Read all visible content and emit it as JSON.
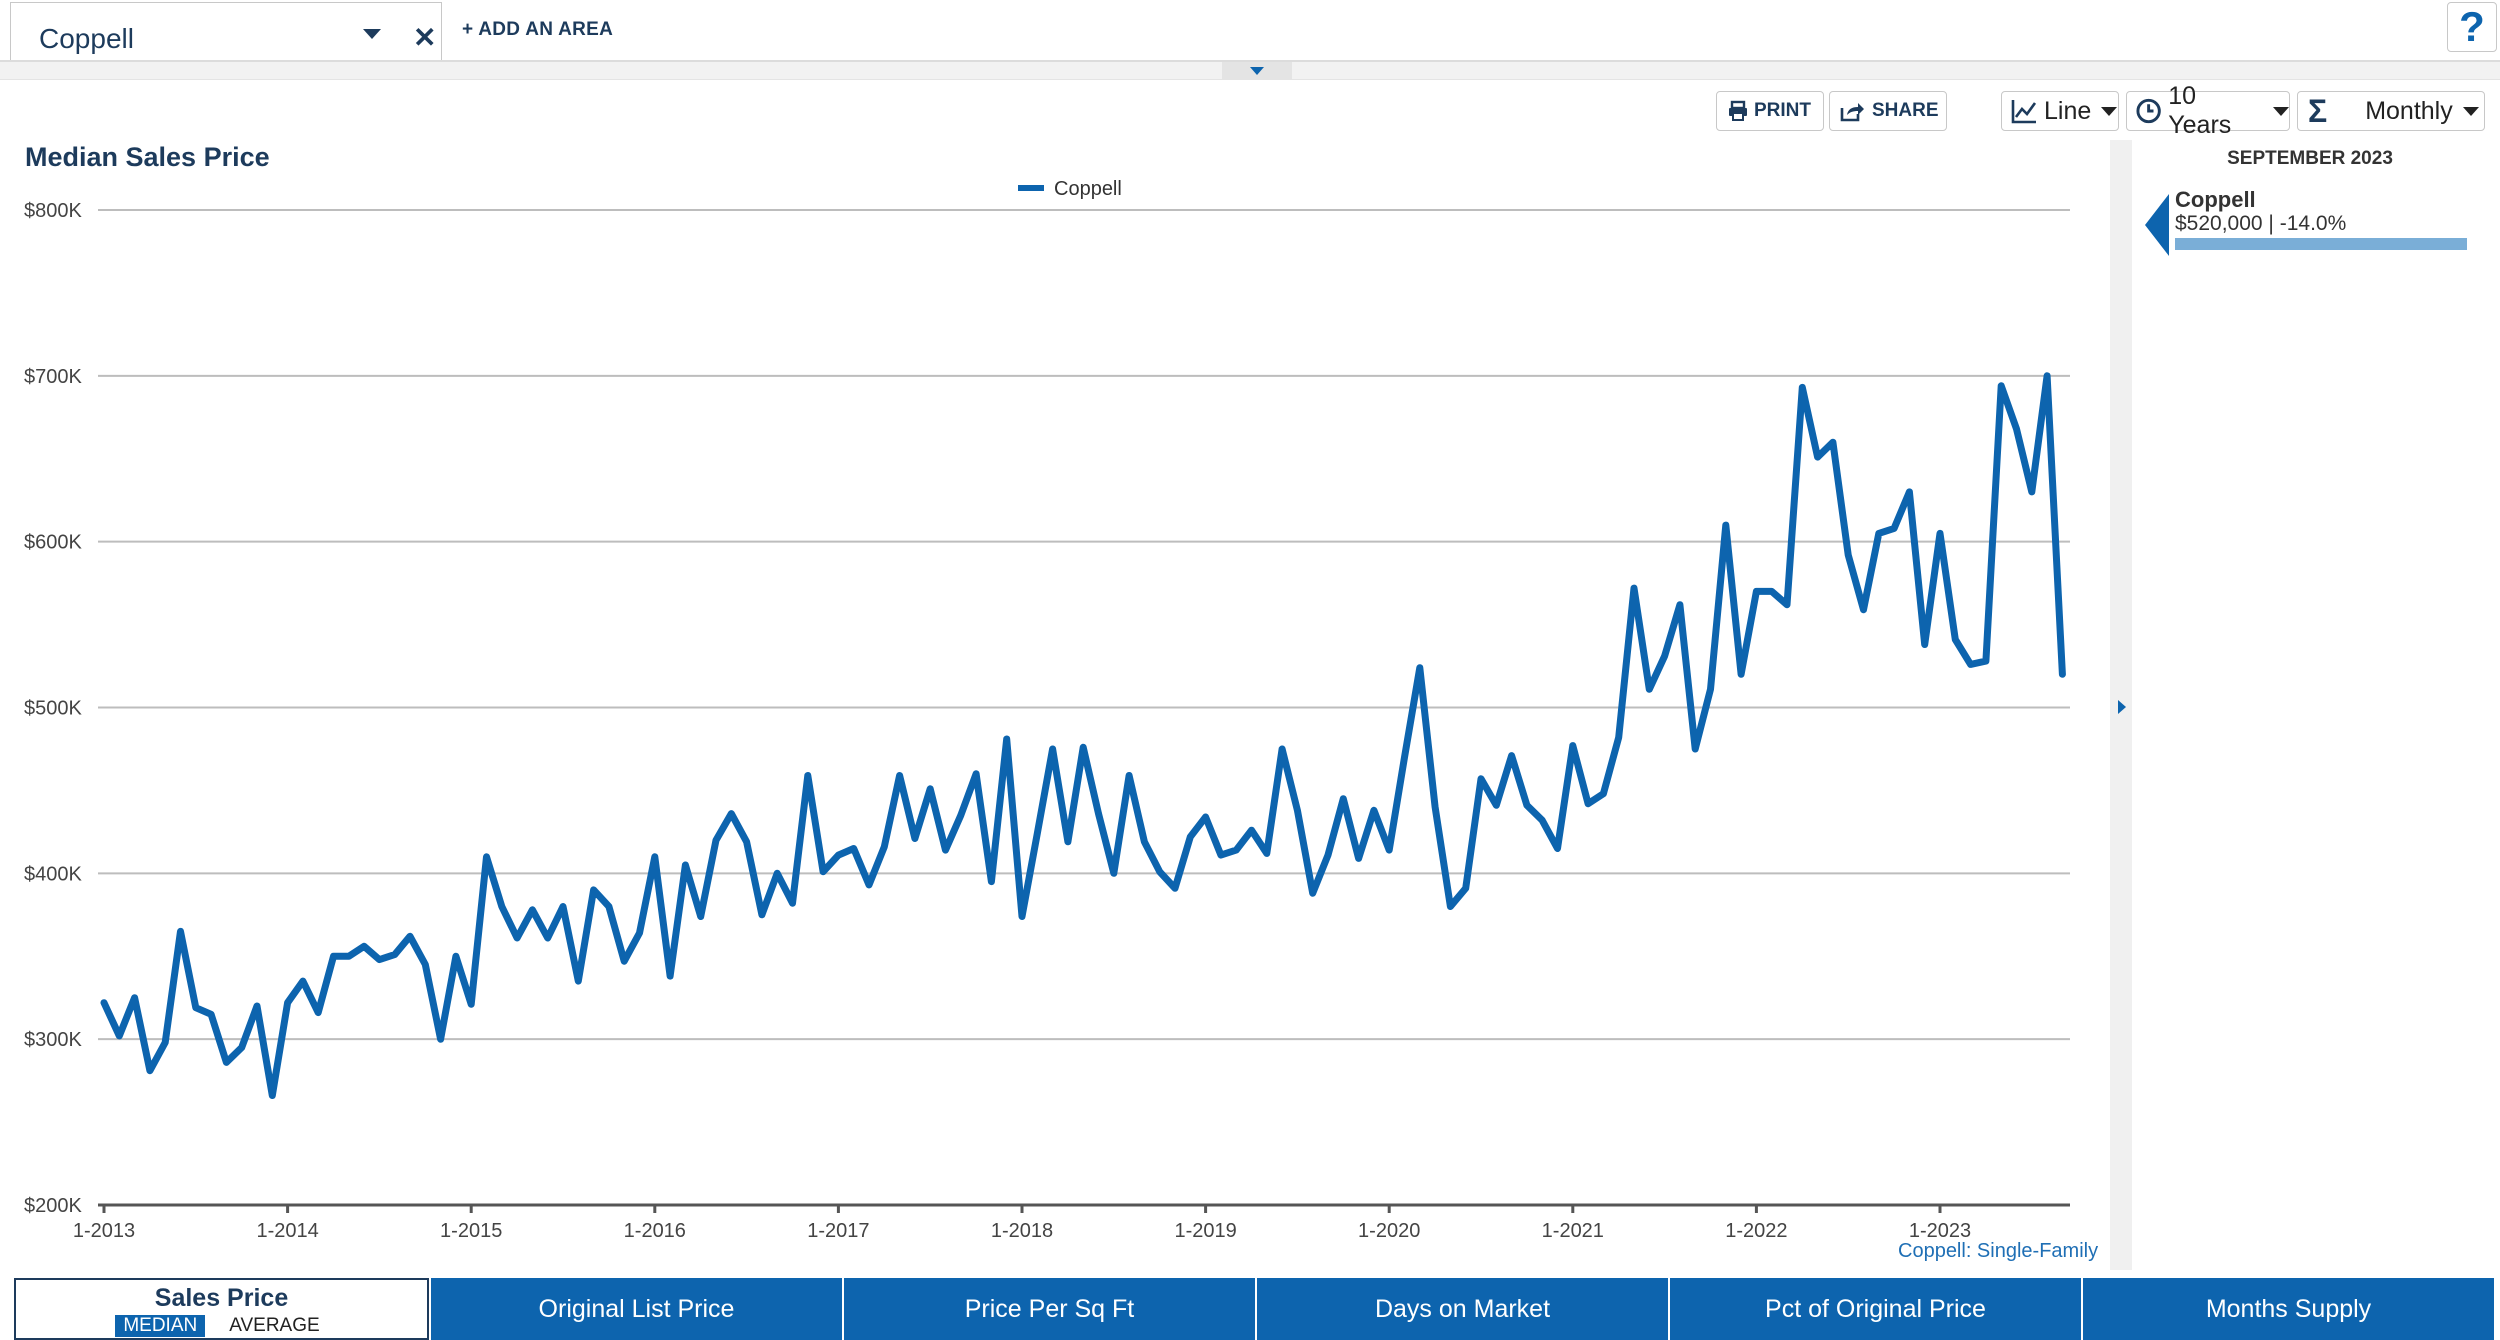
{
  "area": {
    "name": "Coppell",
    "add_label": "+ ADD AN AREA"
  },
  "help_label": "?",
  "toolbar": {
    "print_label": "PRINT",
    "share_label": "SHARE",
    "chart_type": "Line",
    "range": "10 Years",
    "interval": "Monthly"
  },
  "chart_data": {
    "type": "line",
    "title": "Median Sales Price",
    "legend": "top-center",
    "series": [
      {
        "name": "Coppell",
        "color": "#0d64ae",
        "values": [
          322,
          302,
          325,
          281,
          298,
          365,
          319,
          315,
          286,
          295,
          320,
          266,
          322,
          335,
          316,
          350,
          350,
          356,
          348,
          351,
          362,
          345,
          300,
          350,
          321,
          410,
          380,
          361,
          378,
          361,
          380,
          335,
          390,
          380,
          347,
          364,
          410,
          338,
          405,
          374,
          420,
          436,
          419,
          375,
          400,
          382,
          459,
          401,
          411,
          415,
          393,
          416,
          459,
          421,
          451,
          414,
          435,
          460,
          395,
          481,
          374,
          424,
          475,
          419,
          476,
          436,
          400,
          459,
          419,
          401,
          391,
          422,
          434,
          411,
          414,
          426,
          412,
          475,
          438,
          388,
          411,
          445,
          409,
          438,
          414,
          470,
          524,
          440,
          380,
          391,
          457,
          441,
          471,
          441,
          432,
          415,
          477,
          442,
          448,
          482,
          572,
          511,
          531,
          562,
          475,
          511,
          610,
          520,
          570,
          570,
          562,
          693,
          651,
          660,
          592,
          559,
          605,
          608,
          630,
          538,
          605,
          541,
          526,
          528,
          694,
          668,
          630,
          700,
          520
        ]
      }
    ],
    "x_start": "2013-01",
    "x_end": "2023-09",
    "x_ticks": [
      "1-2013",
      "1-2014",
      "1-2015",
      "1-2016",
      "1-2017",
      "1-2018",
      "1-2019",
      "1-2020",
      "1-2021",
      "1-2022",
      "1-2023"
    ],
    "y_ticks": [
      "$200K",
      "$300K",
      "$400K",
      "$500K",
      "$600K",
      "$700K",
      "$800K"
    ],
    "ylim": [
      200,
      800
    ],
    "y_unit": "thousands of dollars",
    "grid": true
  },
  "source_label": "Coppell: Single-Family",
  "right_panel": {
    "date": "SEPTEMBER 2023",
    "area": "Coppell",
    "value": "$520,000 | -14.0%"
  },
  "tabs": [
    {
      "label": "Sales Price",
      "active": true,
      "options": [
        "MEDIAN",
        "AVERAGE"
      ]
    },
    {
      "label": "Original List Price"
    },
    {
      "label": "Price Per Sq Ft"
    },
    {
      "label": "Days on Market"
    },
    {
      "label": "Pct of Original Price"
    },
    {
      "label": "Months Supply"
    }
  ]
}
